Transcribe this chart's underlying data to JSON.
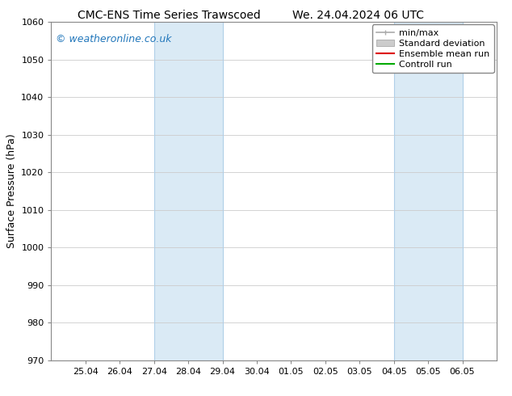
{
  "title_left": "CMC-ENS Time Series Trawscoed",
  "title_right": "We. 24.04.2024 06 UTC",
  "ylabel": "Surface Pressure (hPa)",
  "ylim": [
    970,
    1060
  ],
  "yticks": [
    970,
    980,
    990,
    1000,
    1010,
    1020,
    1030,
    1040,
    1050,
    1060
  ],
  "xtick_labels": [
    "25.04",
    "26.04",
    "27.04",
    "28.04",
    "29.04",
    "30.04",
    "01.05",
    "02.05",
    "03.05",
    "04.05",
    "05.05",
    "06.05"
  ],
  "xtick_positions": [
    1,
    2,
    3,
    4,
    5,
    6,
    7,
    8,
    9,
    10,
    11,
    12
  ],
  "xlim": [
    0,
    13
  ],
  "shaded_bands": [
    {
      "start": 3,
      "end": 5
    },
    {
      "start": 10,
      "end": 12
    }
  ],
  "shade_color": "#daeaf5",
  "shade_edge_color": "#b0cfe8",
  "watermark": "© weatheronline.co.uk",
  "watermark_color": "#2277bb",
  "legend_items": [
    {
      "label": "min/max",
      "color": "#aaaaaa",
      "type": "minmax"
    },
    {
      "label": "Standard deviation",
      "color": "#cccccc",
      "type": "box"
    },
    {
      "label": "Ensemble mean run",
      "color": "#dd0000",
      "type": "line"
    },
    {
      "label": "Controll run",
      "color": "#00aa00",
      "type": "line"
    }
  ],
  "bg_color": "#ffffff",
  "plot_bg_color": "#ffffff",
  "grid_color": "#cccccc",
  "spine_color": "#888888",
  "title_fontsize": 10,
  "ylabel_fontsize": 9,
  "tick_fontsize": 8,
  "legend_fontsize": 8,
  "watermark_fontsize": 9
}
